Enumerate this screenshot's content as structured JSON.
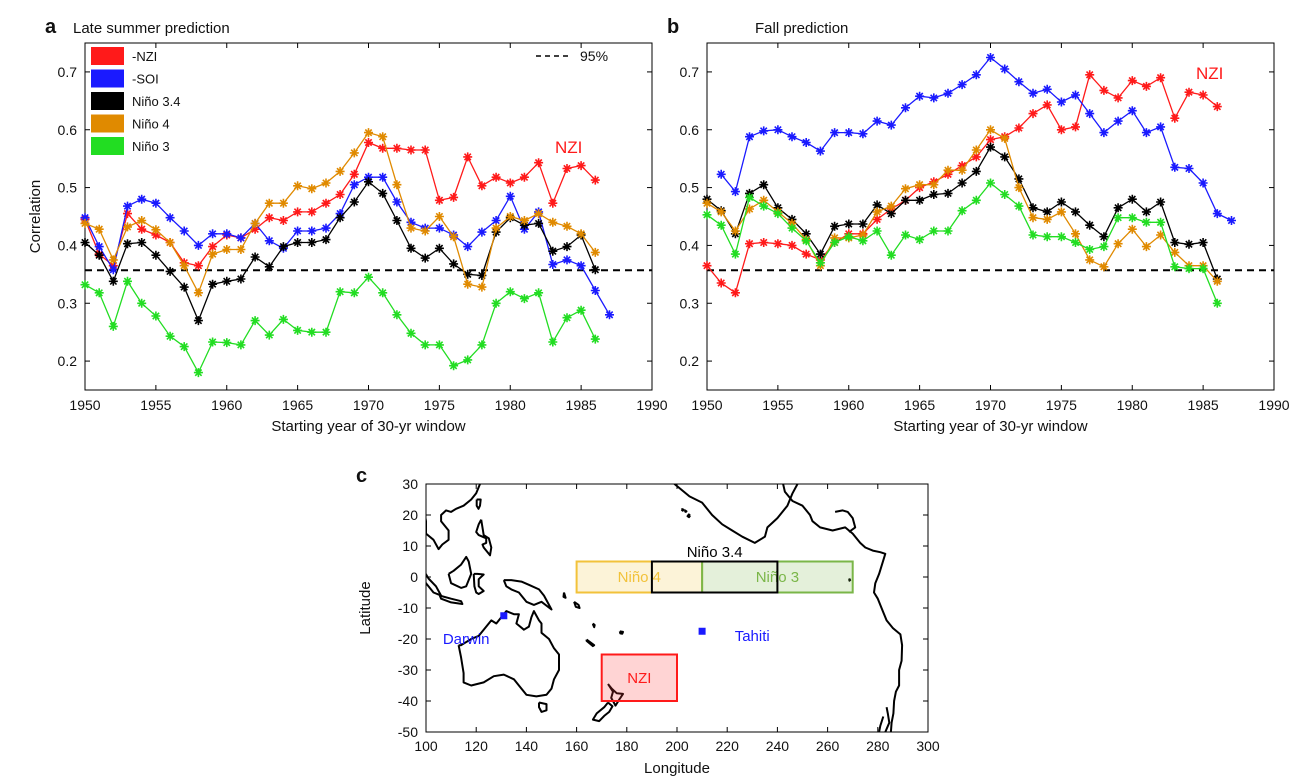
{
  "panel_labels": [
    "a",
    "b",
    "c"
  ],
  "threshold_label": "95%",
  "colors": {
    "nzi": "#ff1a1a",
    "soi": "#1a1aff",
    "nino34": "#000000",
    "nino4": "#e08a00",
    "nino3": "#22dd22",
    "nino4_box": "#f2c23a",
    "nino3_box": "#7ab648"
  },
  "chart_data": [
    {
      "type": "line",
      "title": "Late summer prediction",
      "xlabel": "Starting year of 30-yr window",
      "ylabel": "Correlation",
      "xlim": [
        1950,
        1990
      ],
      "ylim": [
        0.15,
        0.75
      ],
      "xticks": [
        1950,
        1955,
        1960,
        1965,
        1970,
        1975,
        1980,
        1985,
        1990
      ],
      "yticks": [
        0.2,
        0.3,
        0.4,
        0.5,
        0.6,
        0.7
      ],
      "grid": false,
      "legend_position": "top-left",
      "threshold": 0.357,
      "annotation": "NZI",
      "x": [
        1950,
        1951,
        1952,
        1953,
        1954,
        1955,
        1956,
        1957,
        1958,
        1959,
        1960,
        1961,
        1962,
        1963,
        1964,
        1965,
        1966,
        1967,
        1968,
        1969,
        1970,
        1971,
        1972,
        1973,
        1974,
        1975,
        1976,
        1977,
        1978,
        1979,
        1980,
        1981,
        1982,
        1983,
        1984,
        1985,
        1986,
        1987
      ],
      "series": [
        {
          "name": "-NZI",
          "color": "#ff1a1a",
          "values": [
            0.445,
            0.385,
            0.365,
            0.455,
            0.428,
            0.418,
            0.405,
            0.37,
            0.365,
            0.398,
            0.418,
            0.413,
            0.428,
            0.448,
            0.443,
            0.458,
            0.458,
            0.473,
            0.488,
            0.523,
            0.578,
            0.568,
            0.568,
            0.565,
            0.565,
            0.478,
            0.483,
            0.553,
            0.503,
            0.518,
            0.508,
            0.518,
            0.543,
            0.473,
            0.533,
            0.538,
            0.513,
            null
          ]
        },
        {
          "name": "-SOI",
          "color": "#1a1aff",
          "values": [
            0.448,
            0.398,
            0.358,
            0.468,
            0.48,
            0.473,
            0.448,
            0.425,
            0.4,
            0.42,
            0.42,
            0.413,
            0.438,
            0.408,
            0.395,
            0.425,
            0.425,
            0.43,
            0.455,
            0.505,
            0.518,
            0.518,
            0.475,
            0.44,
            0.43,
            0.43,
            0.418,
            0.398,
            0.423,
            0.443,
            0.485,
            0.428,
            0.458,
            0.367,
            0.375,
            0.365,
            0.322,
            0.28
          ]
        },
        {
          "name": "Niño 3.4",
          "color": "#000000",
          "values": [
            0.405,
            0.383,
            0.338,
            0.403,
            0.405,
            0.383,
            0.355,
            0.328,
            0.27,
            0.333,
            0.338,
            0.342,
            0.38,
            0.363,
            0.398,
            0.405,
            0.405,
            0.41,
            0.448,
            0.475,
            0.51,
            0.49,
            0.443,
            0.395,
            0.378,
            0.395,
            0.368,
            0.35,
            0.348,
            0.423,
            0.448,
            0.435,
            0.438,
            0.39,
            0.398,
            0.418,
            0.358,
            null
          ]
        },
        {
          "name": "Niño 4",
          "color": "#e08a00",
          "values": [
            0.438,
            0.428,
            0.375,
            0.432,
            0.443,
            0.427,
            0.405,
            0.365,
            0.318,
            0.385,
            0.393,
            0.393,
            0.438,
            0.473,
            0.473,
            0.503,
            0.498,
            0.508,
            0.528,
            0.56,
            0.595,
            0.588,
            0.505,
            0.43,
            0.425,
            0.45,
            0.415,
            0.333,
            0.328,
            0.43,
            0.45,
            0.443,
            0.455,
            0.44,
            0.433,
            0.42,
            0.388,
            null
          ]
        },
        {
          "name": "Niño 3",
          "color": "#22dd22",
          "values": [
            0.332,
            0.318,
            0.26,
            0.338,
            0.3,
            0.278,
            0.243,
            0.225,
            0.18,
            0.233,
            0.232,
            0.228,
            0.27,
            0.245,
            0.272,
            0.253,
            0.25,
            0.25,
            0.32,
            0.318,
            0.345,
            0.318,
            0.28,
            0.248,
            0.228,
            0.228,
            0.192,
            0.202,
            0.228,
            0.3,
            0.32,
            0.308,
            0.318,
            0.233,
            0.275,
            0.288,
            0.238,
            null
          ]
        }
      ]
    },
    {
      "type": "line",
      "title": "Fall prediction",
      "xlabel": "Starting year of 30-yr window",
      "ylabel": "",
      "xlim": [
        1950,
        1990
      ],
      "ylim": [
        0.15,
        0.75
      ],
      "xticks": [
        1950,
        1955,
        1960,
        1965,
        1970,
        1975,
        1980,
        1985,
        1990
      ],
      "yticks": [
        0.2,
        0.3,
        0.4,
        0.5,
        0.6,
        0.7
      ],
      "grid": false,
      "threshold": 0.357,
      "annotation": "NZI",
      "x": [
        1950,
        1951,
        1952,
        1953,
        1954,
        1955,
        1956,
        1957,
        1958,
        1959,
        1960,
        1961,
        1962,
        1963,
        1964,
        1965,
        1966,
        1967,
        1968,
        1969,
        1970,
        1971,
        1972,
        1973,
        1974,
        1975,
        1976,
        1977,
        1978,
        1979,
        1980,
        1981,
        1982,
        1983,
        1984,
        1985,
        1986,
        1987
      ],
      "series": [
        {
          "name": "-NZI",
          "color": "#ff1a1a",
          "values": [
            0.365,
            0.335,
            0.318,
            0.403,
            0.405,
            0.403,
            0.4,
            0.385,
            0.375,
            0.405,
            0.42,
            0.42,
            0.445,
            0.463,
            0.478,
            0.5,
            0.51,
            0.523,
            0.538,
            0.553,
            0.583,
            0.588,
            0.603,
            0.628,
            0.643,
            0.6,
            0.605,
            0.695,
            0.668,
            0.655,
            0.685,
            0.675,
            0.69,
            0.62,
            0.665,
            0.66,
            0.64,
            null
          ]
        },
        {
          "name": "-SOI",
          "color": "#1a1aff",
          "values": [
            null,
            0.523,
            0.493,
            0.588,
            0.598,
            0.6,
            0.588,
            0.578,
            0.563,
            0.595,
            0.595,
            0.593,
            0.615,
            0.608,
            0.638,
            0.658,
            0.655,
            0.663,
            0.678,
            0.695,
            0.725,
            0.705,
            0.683,
            0.663,
            0.67,
            0.648,
            0.66,
            0.628,
            0.595,
            0.615,
            0.633,
            0.595,
            0.605,
            0.535,
            0.533,
            0.508,
            0.455,
            0.443
          ]
        },
        {
          "name": "Niño 3.4",
          "color": "#000000",
          "values": [
            0.48,
            0.46,
            0.42,
            0.49,
            0.505,
            0.465,
            0.445,
            0.42,
            0.385,
            0.433,
            0.437,
            0.437,
            0.47,
            0.455,
            0.478,
            0.478,
            0.488,
            0.49,
            0.508,
            0.528,
            0.57,
            0.553,
            0.515,
            0.465,
            0.458,
            0.475,
            0.458,
            0.435,
            0.415,
            0.465,
            0.48,
            0.458,
            0.475,
            0.405,
            0.402,
            0.405,
            0.342,
            null
          ]
        },
        {
          "name": "Niño 4",
          "color": "#e08a00",
          "values": [
            0.473,
            0.458,
            0.425,
            0.463,
            0.478,
            0.458,
            0.438,
            0.41,
            0.365,
            0.413,
            0.413,
            0.418,
            0.458,
            0.468,
            0.498,
            0.505,
            0.505,
            0.53,
            0.53,
            0.565,
            0.6,
            0.585,
            0.5,
            0.448,
            0.445,
            0.458,
            0.42,
            0.375,
            0.363,
            0.403,
            0.428,
            0.398,
            0.418,
            0.388,
            0.365,
            0.365,
            0.338,
            null
          ]
        },
        {
          "name": "Niño 3",
          "color": "#22dd22",
          "values": [
            0.453,
            0.435,
            0.385,
            0.483,
            0.468,
            0.455,
            0.43,
            0.408,
            0.37,
            0.405,
            0.415,
            0.408,
            0.425,
            0.383,
            0.418,
            0.41,
            0.425,
            0.425,
            0.46,
            0.478,
            0.508,
            0.488,
            0.468,
            0.418,
            0.415,
            0.415,
            0.405,
            0.393,
            0.398,
            0.448,
            0.448,
            0.44,
            0.44,
            0.363,
            0.36,
            0.36,
            0.3,
            null
          ]
        }
      ]
    },
    {
      "type": "map",
      "xlabel": "Longitude",
      "ylabel": "Latitude",
      "xlim": [
        100,
        300
      ],
      "ylim": [
        -50,
        30
      ],
      "xticks": [
        100,
        120,
        140,
        160,
        180,
        200,
        220,
        240,
        260,
        280,
        300
      ],
      "yticks": [
        -50,
        -40,
        -30,
        -20,
        -10,
        0,
        10,
        20,
        30
      ],
      "boxes": [
        {
          "name": "Niño 4",
          "lon": [
            160,
            210
          ],
          "lat": [
            -5,
            5
          ],
          "color": "#f2c23a",
          "label_lon": 185,
          "label_lat": 0
        },
        {
          "name": "Niño 3",
          "lon": [
            210,
            270
          ],
          "lat": [
            -5,
            5
          ],
          "color": "#7ab648",
          "label_lon": 240,
          "label_lat": 0
        },
        {
          "name": "Niño 3.4",
          "lon": [
            190,
            240
          ],
          "lat": [
            -5,
            5
          ],
          "color": "#000000",
          "label_lon": 215,
          "label_lat": 8
        },
        {
          "name": "NZI",
          "lon": [
            170,
            200
          ],
          "lat": [
            -40,
            -25
          ],
          "color": "#ff1a1a",
          "label_lon": 185,
          "label_lat": -32.5
        }
      ],
      "stations": [
        {
          "name": "Darwin",
          "lon": 131,
          "lat": -12.5,
          "label_lon": 116,
          "label_lat": -20
        },
        {
          "name": "Tahiti",
          "lon": 210,
          "lat": -17.5,
          "label_lon": 223,
          "label_lat": -19
        }
      ]
    }
  ]
}
